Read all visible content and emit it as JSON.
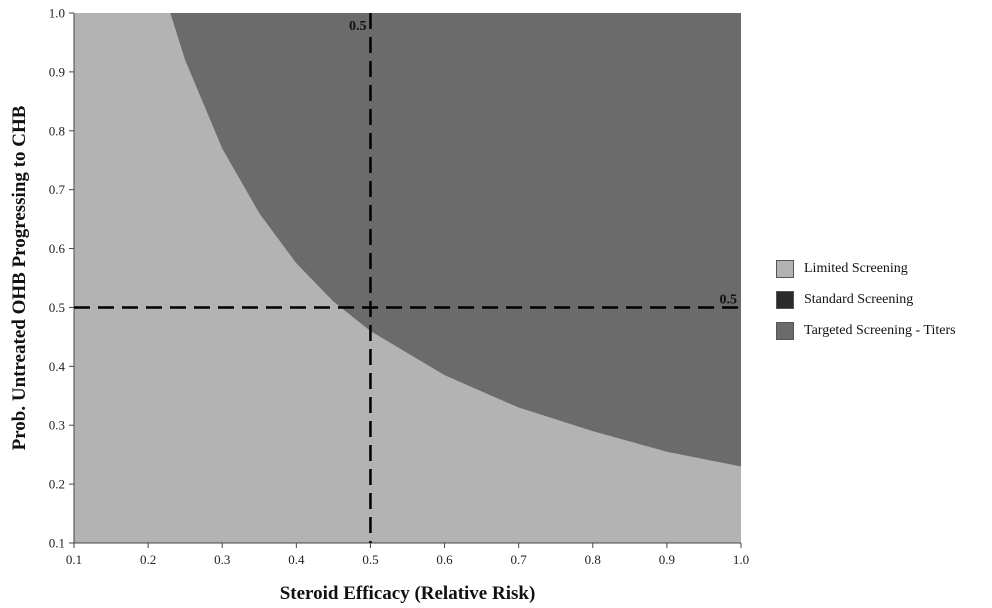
{
  "chart_data": {
    "type": "area",
    "xlabel": "Steroid Efficacy (Relative Risk)",
    "ylabel": "Prob. Untreated OHB Progressing to CHB",
    "xlim": [
      0.1,
      1.0
    ],
    "ylim": [
      0.1,
      1.0
    ],
    "x_ticks": [
      "0.1",
      "0.2",
      "0.3",
      "0.4",
      "0.5",
      "0.6",
      "0.7",
      "0.8",
      "0.9",
      "1.0"
    ],
    "y_ticks": [
      "0.1",
      "0.2",
      "0.3",
      "0.4",
      "0.5",
      "0.6",
      "0.7",
      "0.8",
      "0.9",
      "1.0"
    ],
    "grid": false,
    "legend_position": "right",
    "legend": [
      {
        "label": "Limited Screening",
        "color": "#b3b3b3"
      },
      {
        "label": "Standard Screening",
        "color": "#2a2a2a"
      },
      {
        "label": "Targeted Screening - Titers",
        "color": "#6b6b6b"
      }
    ],
    "boundary": {
      "description_region_above": "Targeted Screening - Titers",
      "description_region_below": "Limited Screening",
      "points": [
        {
          "x": 0.23,
          "y": 1.0
        },
        {
          "x": 0.25,
          "y": 0.92
        },
        {
          "x": 0.3,
          "y": 0.77
        },
        {
          "x": 0.35,
          "y": 0.66
        },
        {
          "x": 0.4,
          "y": 0.575
        },
        {
          "x": 0.45,
          "y": 0.51
        },
        {
          "x": 0.5,
          "y": 0.46
        },
        {
          "x": 0.6,
          "y": 0.385
        },
        {
          "x": 0.7,
          "y": 0.33
        },
        {
          "x": 0.8,
          "y": 0.29
        },
        {
          "x": 0.9,
          "y": 0.255
        },
        {
          "x": 1.0,
          "y": 0.23
        }
      ]
    },
    "reference_lines": [
      {
        "axis": "x",
        "value": 0.5,
        "label": "0.5"
      },
      {
        "axis": "y",
        "value": 0.5,
        "label": "0.5"
      }
    ]
  }
}
